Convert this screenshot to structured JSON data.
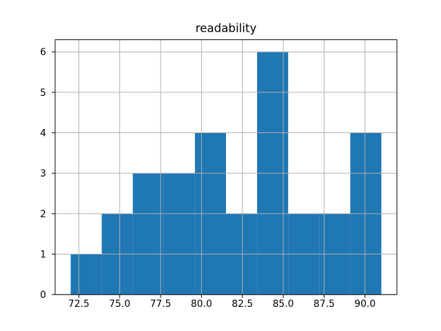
{
  "chart_data": {
    "type": "bar",
    "subtype": "histogram",
    "title": "readability",
    "xlabel": "",
    "ylabel": "",
    "bin_edges": [
      72.0,
      73.9,
      75.8,
      77.7,
      79.6,
      81.5,
      83.4,
      85.3,
      87.2,
      89.1,
      91.0
    ],
    "counts": [
      1,
      2,
      3,
      3,
      4,
      2,
      6,
      2,
      2,
      4
    ],
    "xlim": [
      71.05,
      91.95
    ],
    "ylim": [
      0,
      6.3
    ],
    "x_ticks": [
      {
        "value": 72.5,
        "label": "72.5"
      },
      {
        "value": 75.0,
        "label": "75.0"
      },
      {
        "value": 77.5,
        "label": "77.5"
      },
      {
        "value": 80.0,
        "label": "80.0"
      },
      {
        "value": 82.5,
        "label": "82.5"
      },
      {
        "value": 85.0,
        "label": "85.0"
      },
      {
        "value": 87.5,
        "label": "87.5"
      },
      {
        "value": 90.0,
        "label": "90.0"
      }
    ],
    "y_ticks": [
      {
        "value": 0,
        "label": "0"
      },
      {
        "value": 1,
        "label": "1"
      },
      {
        "value": 2,
        "label": "2"
      },
      {
        "value": 3,
        "label": "3"
      },
      {
        "value": 4,
        "label": "4"
      },
      {
        "value": 5,
        "label": "5"
      },
      {
        "value": 6,
        "label": "6"
      }
    ],
    "grid": true,
    "legend": false,
    "colors": {
      "bar": "#1f77b4",
      "grid": "#b0b0b0",
      "spine": "#000000",
      "text": "#000000",
      "background": "#ffffff"
    }
  }
}
